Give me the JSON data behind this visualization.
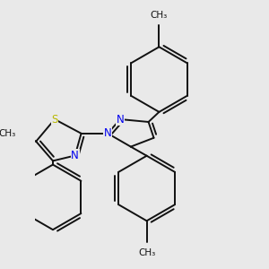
{
  "bg_color": "#e9e9e9",
  "bond_color": "#111111",
  "bond_width": 1.4,
  "S_color": "#b8b800",
  "N_color": "#0000ee",
  "figsize": [
    3.0,
    3.0
  ],
  "dpi": 100,
  "xlim": [
    -2.5,
    4.5
  ],
  "ylim": [
    -3.5,
    3.5
  ]
}
